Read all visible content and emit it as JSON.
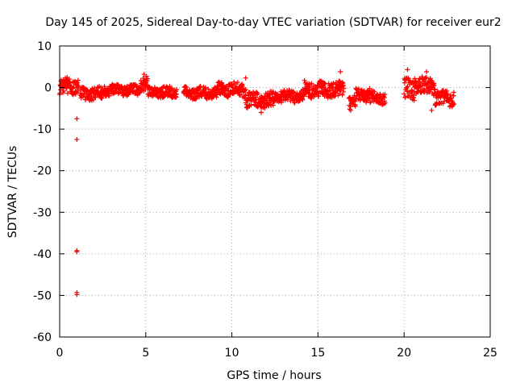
{
  "chart_data": {
    "type": "scatter",
    "title": "Day 145 of 2025, Sidereal Day-to-day VTEC variation (SDTVAR) for receiver eur2",
    "xlabel": "GPS time / hours",
    "ylabel": "SDTVAR / TECUs",
    "xlim": [
      0,
      25
    ],
    "ylim": [
      -60,
      10
    ],
    "xticks": [
      0,
      5,
      10,
      15,
      20,
      25
    ],
    "yticks": [
      10,
      0,
      -10,
      -20,
      -30,
      -40,
      -50,
      -60
    ],
    "xtick_labels": [
      "0",
      "5",
      "10",
      "15",
      "20",
      "25"
    ],
    "ytick_labels": [
      "10",
      "0",
      "-10",
      "-20",
      "-30",
      "-40",
      "-50",
      "-60"
    ],
    "grid": true,
    "marker": "+",
    "series_color": "#ff0000",
    "outliers": [
      {
        "x": 1.0,
        "y": -7.5
      },
      {
        "x": 1.0,
        "y": -12.5
      },
      {
        "x": 1.0,
        "y": -39.2
      },
      {
        "x": 1.0,
        "y": -39.5
      },
      {
        "x": 1.0,
        "y": -49.3
      },
      {
        "x": 1.0,
        "y": -49.8
      }
    ],
    "segments": [
      {
        "x_start": 0.0,
        "x_end": 1.1,
        "y_center": 0.3,
        "spread": 2.0
      },
      {
        "x_start": 1.2,
        "x_end": 2.5,
        "y_center": -1.5,
        "spread": 1.5
      },
      {
        "x_start": 2.5,
        "x_end": 4.7,
        "y_center": -0.6,
        "spread": 1.2
      },
      {
        "x_start": 4.7,
        "x_end": 5.1,
        "y_center": 1.0,
        "spread": 1.6
      },
      {
        "x_start": 5.1,
        "x_end": 6.8,
        "y_center": -1.2,
        "spread": 1.3
      },
      {
        "x_start": 7.2,
        "x_end": 9.2,
        "y_center": -1.3,
        "spread": 1.3
      },
      {
        "x_start": 9.2,
        "x_end": 10.8,
        "y_center": -0.5,
        "spread": 1.6
      },
      {
        "x_start": 10.8,
        "x_end": 12.5,
        "y_center": -3.0,
        "spread": 1.8
      },
      {
        "x_start": 12.5,
        "x_end": 14.2,
        "y_center": -2.0,
        "spread": 1.4
      },
      {
        "x_start": 14.2,
        "x_end": 16.5,
        "y_center": -0.5,
        "spread": 1.8
      },
      {
        "x_start": 16.8,
        "x_end": 17.2,
        "y_center": -3.5,
        "spread": 1.5
      },
      {
        "x_start": 17.2,
        "x_end": 18.0,
        "y_center": -1.8,
        "spread": 1.5
      },
      {
        "x_start": 18.0,
        "x_end": 18.9,
        "y_center": -2.5,
        "spread": 1.3
      },
      {
        "x_start": 20.0,
        "x_end": 20.6,
        "y_center": -0.3,
        "spread": 2.5
      },
      {
        "x_start": 20.6,
        "x_end": 21.8,
        "y_center": 0.5,
        "spread": 2.0
      },
      {
        "x_start": 21.8,
        "x_end": 22.9,
        "y_center": -2.5,
        "spread": 1.8
      }
    ],
    "peaks": [
      {
        "x": 4.9,
        "y": 3.2
      },
      {
        "x": 10.8,
        "y": 2.3
      },
      {
        "x": 16.3,
        "y": 3.8
      },
      {
        "x": 20.2,
        "y": 4.3
      },
      {
        "x": 21.3,
        "y": 3.8
      },
      {
        "x": 11.7,
        "y": -6.0
      },
      {
        "x": 16.9,
        "y": -5.5
      },
      {
        "x": 21.6,
        "y": -5.5
      }
    ]
  }
}
